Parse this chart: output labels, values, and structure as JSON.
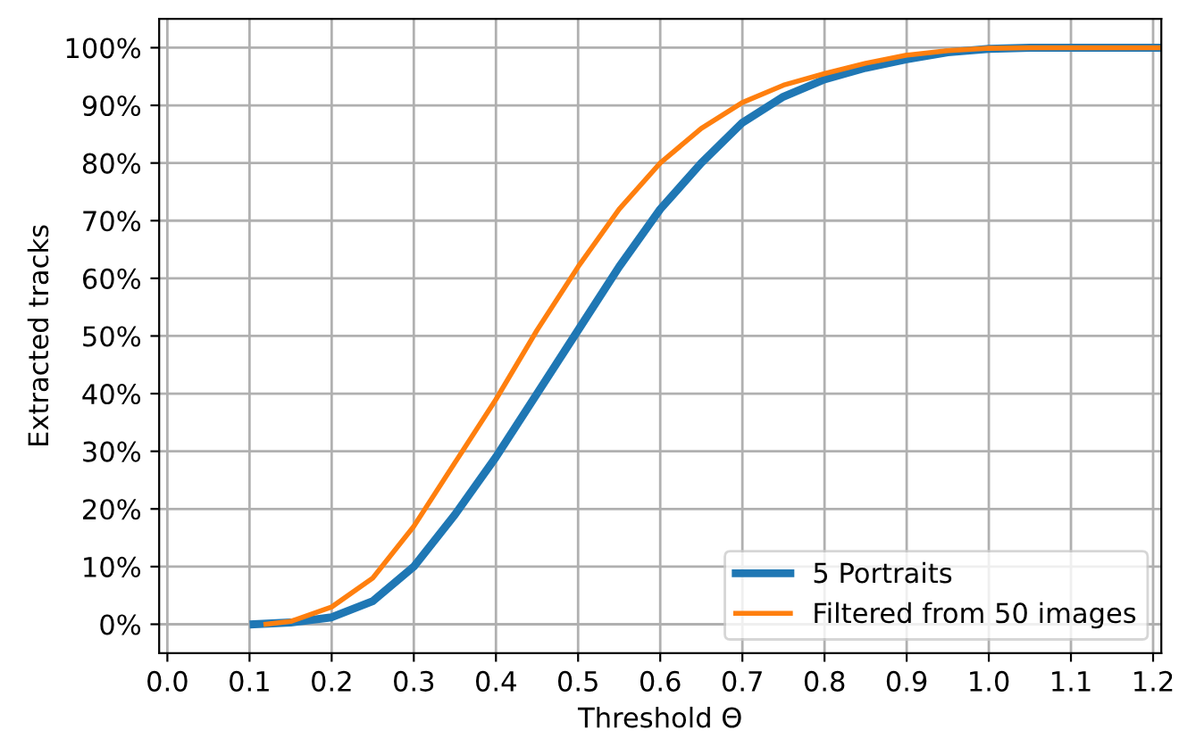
{
  "chart_data": {
    "type": "line",
    "xlabel": "Threshold Θ",
    "ylabel": "Extracted tracks",
    "series": [
      {
        "name": "5 Portraits",
        "color": "#1f77b4",
        "x": [
          0.105,
          0.15,
          0.2,
          0.25,
          0.3,
          0.35,
          0.4,
          0.45,
          0.5,
          0.55,
          0.6,
          0.65,
          0.7,
          0.75,
          0.8,
          0.85,
          0.9,
          0.95,
          1.0,
          1.05,
          1.21
        ],
        "values": [
          0,
          0.3,
          1.2,
          4,
          10,
          19,
          29,
          40,
          51,
          62,
          72,
          80,
          87,
          91.5,
          94.5,
          96.5,
          98,
          99.2,
          99.8,
          100,
          100
        ]
      },
      {
        "name": "Filtered from 50 images",
        "color": "#ff7f0e",
        "x": [
          0.12,
          0.15,
          0.2,
          0.25,
          0.3,
          0.35,
          0.4,
          0.45,
          0.5,
          0.55,
          0.6,
          0.65,
          0.7,
          0.75,
          0.8,
          0.85,
          0.9,
          0.95,
          1.0,
          1.05,
          1.21
        ],
        "values": [
          0,
          0.5,
          3,
          8,
          17,
          28,
          39,
          51,
          62,
          72,
          80,
          86,
          90.5,
          93.5,
          95.5,
          97.3,
          98.7,
          99.5,
          99.9,
          100,
          100
        ]
      }
    ],
    "xlim": [
      -0.01,
      1.21
    ],
    "ylim": [
      -5,
      105
    ],
    "xticks": [
      {
        "value": 0,
        "label": "0.0"
      },
      0.1,
      0.2,
      0.3,
      0.4,
      0.5,
      0.6,
      0.7,
      0.8,
      0.9,
      {
        "value": 1,
        "label": "1.0"
      },
      1.1,
      1.2
    ],
    "yticks": [
      {
        "value": 0,
        "label": "0%"
      },
      {
        "value": 10,
        "label": "10%"
      },
      {
        "value": 20,
        "label": "20%"
      },
      {
        "value": 30,
        "label": "30%"
      },
      {
        "value": 40,
        "label": "40%"
      },
      {
        "value": 50,
        "label": "50%"
      },
      {
        "value": 60,
        "label": "60%"
      },
      {
        "value": 70,
        "label": "70%"
      },
      {
        "value": 80,
        "label": "80%"
      },
      {
        "value": 90,
        "label": "90%"
      },
      {
        "value": 100,
        "label": "100%"
      }
    ],
    "grid": true,
    "legend": "bottom right"
  }
}
